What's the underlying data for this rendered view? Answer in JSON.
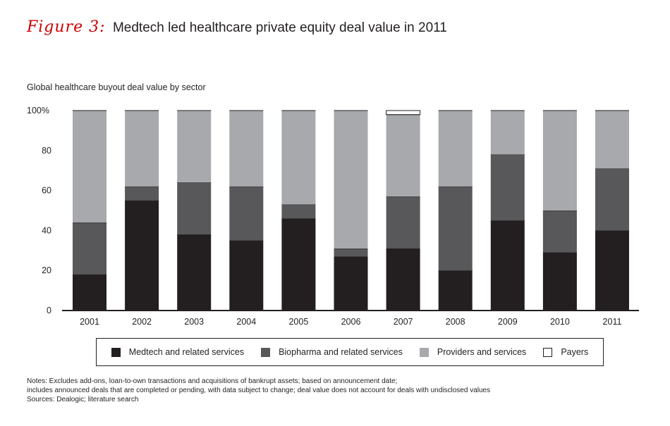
{
  "figure": {
    "label": "Figure 3:",
    "title": "Medtech led healthcare private equity deal value in 2011",
    "subtitle": "Global healthcare buyout deal value by sector"
  },
  "colors": {
    "medtech": "#231f20",
    "biopharma": "#58585a",
    "providers": "#a7a9ac",
    "payers": "#ffffff",
    "accent": "#cc0000"
  },
  "chart_data": {
    "type": "bar",
    "stacked": true,
    "title": "Medtech led healthcare private equity deal value in 2011",
    "ylabel": "Global healthcare buyout deal value by sector",
    "xlabel": "",
    "ylim": [
      0,
      100
    ],
    "yticks": [
      "0",
      "20",
      "40",
      "60",
      "80",
      "100%"
    ],
    "categories": [
      "2001",
      "2002",
      "2003",
      "2004",
      "2005",
      "2006",
      "2007",
      "2008",
      "2009",
      "2010",
      "2011"
    ],
    "series": [
      {
        "name": "Medtech and related services",
        "values": [
          18,
          55,
          38,
          35,
          46,
          27,
          31,
          20,
          45,
          29,
          40
        ]
      },
      {
        "name": "Biopharma and related services",
        "values": [
          26,
          7,
          26,
          27,
          7,
          4,
          26,
          42,
          33,
          21,
          31
        ]
      },
      {
        "name": "Providers and services",
        "values": [
          56,
          38,
          36,
          38,
          47,
          69,
          41,
          38,
          22,
          50,
          29
        ]
      },
      {
        "name": "Payers",
        "values": [
          0,
          0,
          0,
          0,
          0,
          0,
          2,
          0,
          0,
          0,
          0
        ]
      }
    ],
    "legend_position": "bottom"
  },
  "legend": [
    {
      "label": "Medtech and related services",
      "color": "#231f20"
    },
    {
      "label": "Biopharma and related services",
      "color": "#58585a"
    },
    {
      "label": "Providers and services",
      "color": "#a7a9ac"
    },
    {
      "label": "Payers",
      "color": "#ffffff"
    }
  ],
  "notes": {
    "line1": "Notes: Excludes add-ons, loan-to-own transactions and acquisitions of bankrupt assets; based on announcement date;",
    "line2": "includes announced deals that are completed or pending, with data subject to change; deal value does not account for deals with undisclosed values",
    "line3": "Sources: Dealogic; literature search"
  }
}
